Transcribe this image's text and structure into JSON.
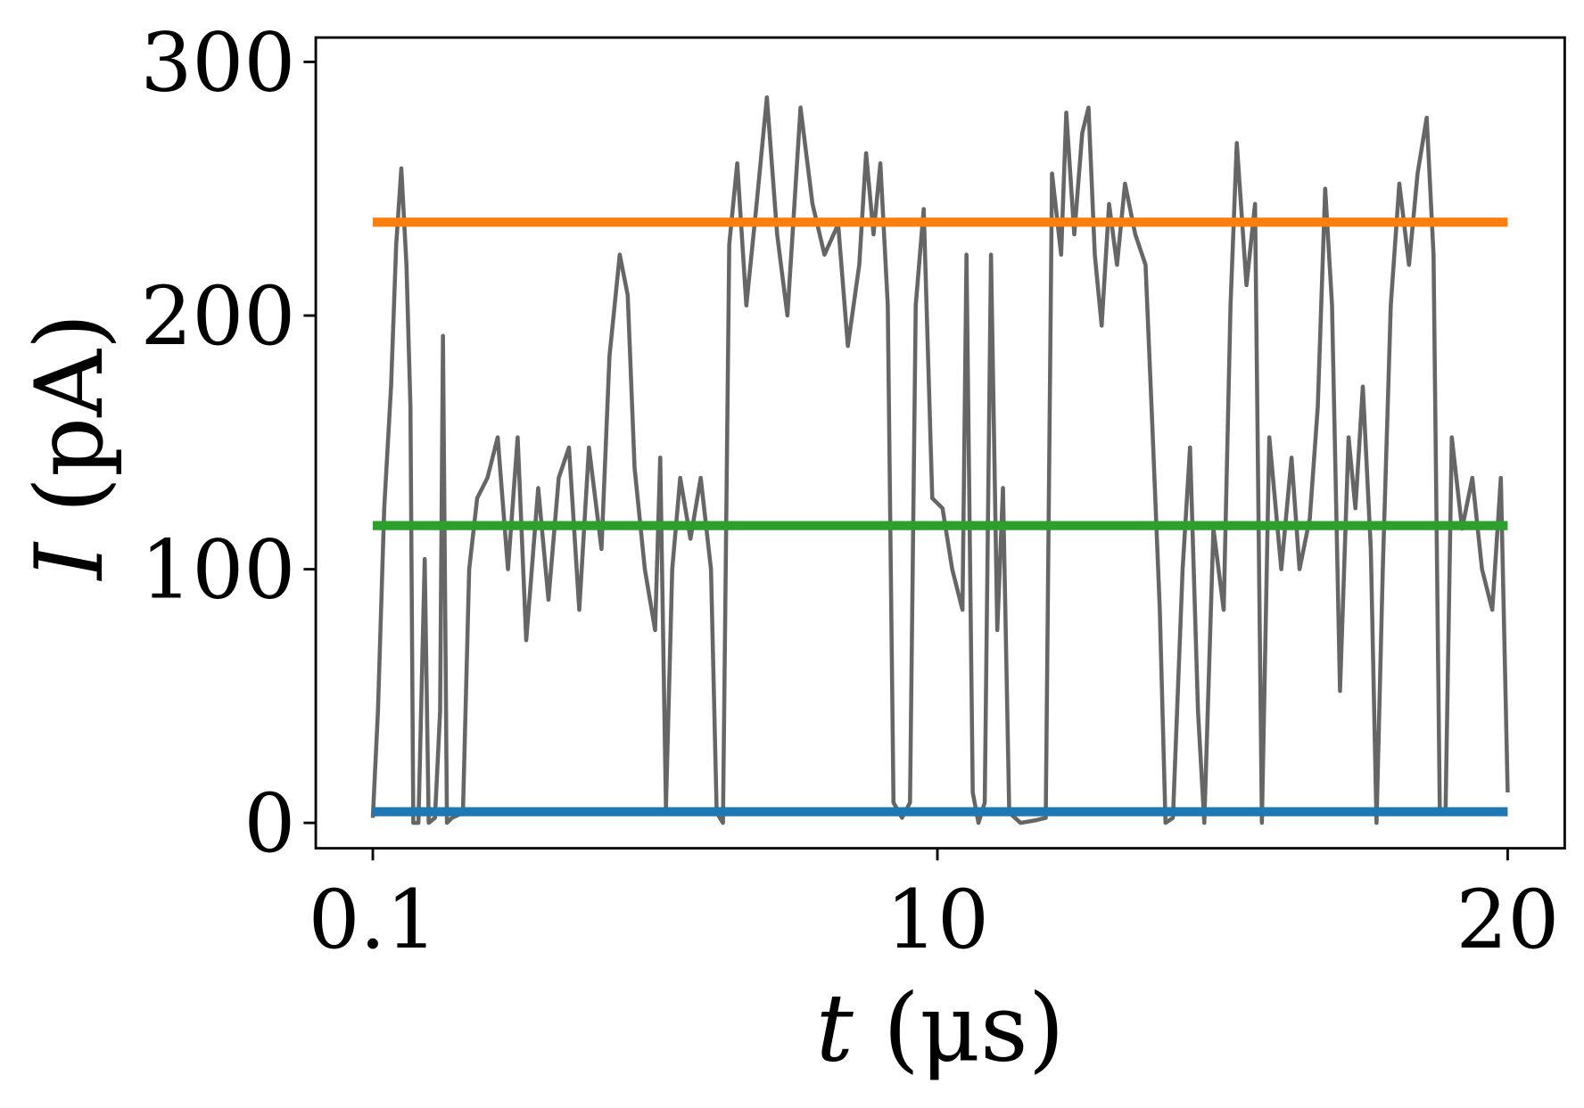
{
  "chart_data": {
    "type": "line",
    "xlabel": "t (μs)",
    "ylabel": "I (pA)",
    "xlim": [
      -0.9,
      21.0
    ],
    "ylim": [
      -10,
      309.6
    ],
    "xticks": [
      0.1,
      10,
      20
    ],
    "yticks": [
      0,
      100,
      200,
      300
    ],
    "series": [
      {
        "color": "#666666",
        "x": [
          0.1,
          0.19,
          0.3,
          0.42,
          0.51,
          0.6,
          0.69,
          0.76,
          0.81,
          0.9,
          1.01,
          1.08,
          1.19,
          1.28,
          1.33,
          1.4,
          1.49,
          1.68,
          1.79,
          1.93,
          2.11,
          2.29,
          2.47,
          2.64,
          2.79,
          3.0,
          3.18,
          3.36,
          3.54,
          3.72,
          3.89,
          4.11,
          4.25,
          4.43,
          4.57,
          4.69,
          4.87,
          5.05,
          5.14,
          5.24,
          5.35,
          5.49,
          5.67,
          5.85,
          6.03,
          6.13,
          6.24,
          6.35,
          6.49,
          6.65,
          6.83,
          7.01,
          7.19,
          7.37,
          7.6,
          7.81,
          8.02,
          8.26,
          8.43,
          8.63,
          8.75,
          8.88,
          9.0,
          9.13,
          9.23,
          9.38,
          9.52,
          9.62,
          9.76,
          9.91,
          10.09,
          10.26,
          10.44,
          10.51,
          10.62,
          10.72,
          10.83,
          10.94,
          11.05,
          11.15,
          11.26,
          11.46,
          11.72,
          11.9,
          12.01,
          12.17,
          12.26,
          12.4,
          12.54,
          12.65,
          12.76,
          12.88,
          13.01,
          13.15,
          13.29,
          13.47,
          13.65,
          13.77,
          13.9,
          14.0,
          14.13,
          14.3,
          14.43,
          14.57,
          14.68,
          14.84,
          15.02,
          15.14,
          15.25,
          15.42,
          15.57,
          15.69,
          15.82,
          16.03,
          16.21,
          16.35,
          16.53,
          16.67,
          16.8,
          16.92,
          17.06,
          17.21,
          17.33,
          17.46,
          17.6,
          17.7,
          17.81,
          17.95,
          18.1,
          18.27,
          18.42,
          18.58,
          18.7,
          18.81,
          18.91,
          19.02,
          19.2,
          19.38,
          19.55,
          19.73,
          19.88,
          20.0
        ],
        "values": [
          2,
          44,
          124,
          172,
          228,
          258,
          220,
          164,
          0,
          0,
          104,
          0,
          2,
          44,
          192,
          0,
          2,
          4,
          100,
          128,
          136,
          152,
          100,
          152,
          72,
          132,
          88,
          136,
          148,
          84,
          148,
          108,
          184,
          224,
          208,
          140,
          100,
          76,
          144,
          6,
          100,
          136,
          112,
          136,
          100,
          4,
          0,
          228,
          260,
          204,
          244,
          286,
          232,
          200,
          282,
          244,
          224,
          236,
          188,
          220,
          264,
          232,
          260,
          204,
          8,
          2,
          8,
          204,
          242,
          128,
          124,
          100,
          84,
          224,
          12,
          0,
          8,
          224,
          76,
          132,
          4,
          0,
          1,
          2,
          256,
          224,
          280,
          232,
          272,
          282,
          224,
          196,
          244,
          220,
          252,
          232,
          220,
          156,
          84,
          0,
          2,
          100,
          148,
          44,
          0,
          116,
          84,
          204,
          268,
          212,
          244,
          0,
          152,
          100,
          144,
          100,
          120,
          164,
          250,
          204,
          52,
          152,
          124,
          172,
          108,
          0,
          100,
          204,
          252,
          220,
          256,
          278,
          224,
          4,
          4,
          152,
          116,
          136,
          100,
          84,
          136,
          12
        ]
      },
      {
        "color": "#ff7f0e",
        "x": [
          0.1,
          20
        ],
        "values": [
          236.8,
          236.8
        ]
      },
      {
        "color": "#2ca02c",
        "x": [
          0.1,
          20
        ],
        "values": [
          117.2,
          117.2
        ]
      },
      {
        "color": "#1f77b4",
        "x": [
          0.1,
          20
        ],
        "values": [
          4.4,
          4.4
        ]
      }
    ]
  }
}
